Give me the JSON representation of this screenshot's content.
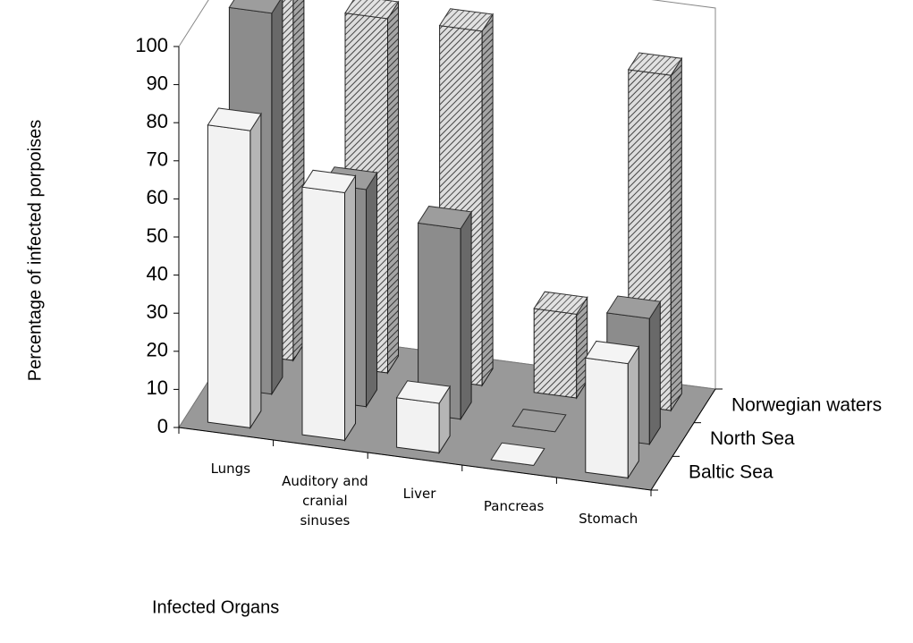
{
  "chart_data": {
    "type": "bar3d",
    "y_axis_label": "Percentage of infected porpoises",
    "x_axis_label": "Infected Organs",
    "categories": [
      "Lungs",
      "Auditory and cranial sinuses",
      "Liver",
      "Pancreas",
      "Stomach"
    ],
    "series": [
      {
        "name": "Baltic Sea",
        "color": "#f2f2f2",
        "values": [
          78,
          65,
          13,
          0,
          30
        ]
      },
      {
        "name": "North Sea",
        "color": "#8c8c8c",
        "values": [
          100,
          57,
          50,
          0,
          33
        ]
      },
      {
        "name": "Norwegian waters",
        "color": "#b4b4b4",
        "values": [
          95,
          93,
          93,
          22,
          88
        ]
      }
    ],
    "ylim": [
      0,
      100
    ],
    "yticks": [
      0,
      10,
      20,
      30,
      40,
      50,
      60,
      70,
      80,
      90,
      100
    ]
  }
}
